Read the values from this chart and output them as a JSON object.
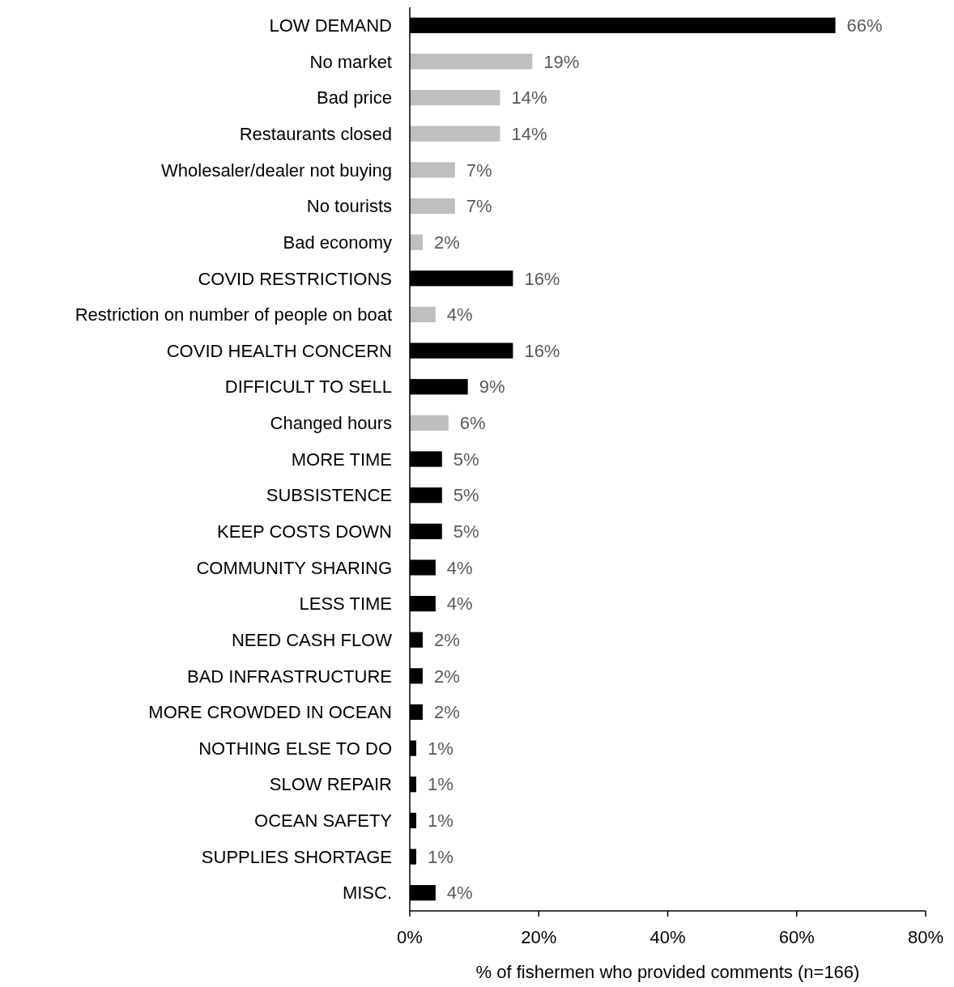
{
  "chart_data": {
    "type": "bar",
    "orientation": "horizontal",
    "xlabel": "% of fishermen who provided comments (n=166)",
    "categories": [
      "LOW DEMAND",
      "No market",
      "Bad price",
      "Restaurants closed",
      "Wholesaler/dealer not buying",
      "No tourists",
      "Bad economy",
      "COVID RESTRICTIONS",
      "Restriction on number of people on boat",
      "COVID HEALTH CONCERN",
      "DIFFICULT TO SELL",
      "Changed hours",
      "MORE TIME",
      "SUBSISTENCE",
      "KEEP COSTS DOWN",
      "COMMUNITY SHARING",
      "LESS TIME",
      "NEED CASH FLOW",
      "BAD INFRASTRUCTURE",
      "MORE CROWDED IN OCEAN",
      "NOTHING ELSE TO DO",
      "SLOW REPAIR",
      "OCEAN SAFETY",
      "SUPPLIES SHORTAGE",
      "MISC."
    ],
    "values": [
      66,
      19,
      14,
      14,
      7,
      7,
      2,
      16,
      4,
      16,
      9,
      6,
      5,
      5,
      5,
      4,
      4,
      2,
      2,
      2,
      1,
      1,
      1,
      1,
      4
    ],
    "value_labels": [
      "66%",
      "19%",
      "14%",
      "14%",
      "7%",
      "7%",
      "2%",
      "16%",
      "4%",
      "16%",
      "9%",
      "6%",
      "5%",
      "5%",
      "5%",
      "4%",
      "4%",
      "2%",
      "2%",
      "2%",
      "1%",
      "1%",
      "1%",
      "1%",
      "4%"
    ],
    "colors": [
      "#000000",
      "#bfbfbf",
      "#bfbfbf",
      "#bfbfbf",
      "#bfbfbf",
      "#bfbfbf",
      "#bfbfbf",
      "#000000",
      "#bfbfbf",
      "#000000",
      "#000000",
      "#bfbfbf",
      "#000000",
      "#000000",
      "#000000",
      "#000000",
      "#000000",
      "#000000",
      "#000000",
      "#000000",
      "#000000",
      "#000000",
      "#000000",
      "#000000",
      "#000000"
    ],
    "xlim": [
      0,
      80
    ],
    "grid": false,
    "xticks": [
      {
        "value": 0,
        "label": "0%"
      },
      {
        "value": 20,
        "label": "20%"
      },
      {
        "value": 40,
        "label": "40%"
      },
      {
        "value": 60,
        "label": "60%"
      },
      {
        "value": 80,
        "label": "80%"
      }
    ],
    "tick_labels": "x"
  }
}
